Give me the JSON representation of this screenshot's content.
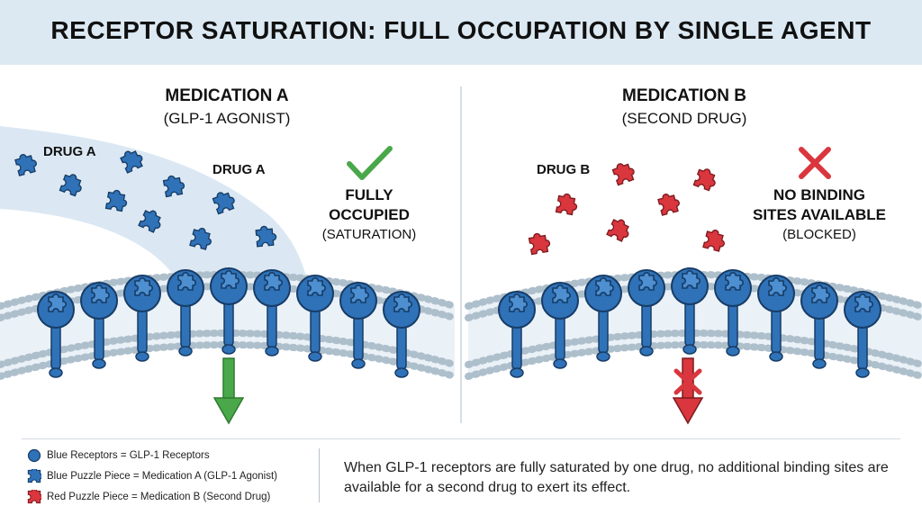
{
  "title": "RECEPTOR SATURATION: FULL OCCUPATION BY SINGLE AGENT",
  "panels": {
    "a": {
      "heading": "MEDICATION A",
      "subheading": "(GLP-1 AGONIST)",
      "drug_label_1": "DRUG A",
      "drug_label_2": "DRUG A",
      "status_line_1": "FULLY",
      "status_line_2": "OCCUPIED",
      "status_line_3": "(SATURATION)",
      "status_icon": "check-icon",
      "arrow_icon": "down-arrow-icon",
      "color": "#2f72b8"
    },
    "b": {
      "heading": "MEDICATION B",
      "subheading": "(SECOND DRUG)",
      "drug_label": "DRUG B",
      "status_line_1": "NO BINDING",
      "status_line_2": "SITES AVAILABLE",
      "status_line_3": "(BLOCKED)",
      "status_icon": "x-icon",
      "arrow_icon": "blocked-arrow-icon",
      "color": "#d9363e"
    }
  },
  "legend": [
    {
      "icon": "receptor-circle-icon",
      "label": "Blue Receptors = GLP-1 Receptors"
    },
    {
      "icon": "blue-puzzle-icon",
      "label": "Blue Puzzle Piece = Medication A (GLP-1 Agonist)"
    },
    {
      "icon": "red-puzzle-icon",
      "label": "Red Puzzle Piece = Medication B (Second Drug)"
    }
  ],
  "note": "When GLP-1 receptors are fully saturated by one drug, no additional binding sites are available for a second drug to exert its effect.",
  "colors": {
    "blue": "#2f72b8",
    "red": "#d9363e",
    "green": "#4aa84a",
    "banner": "#dce9f3"
  }
}
